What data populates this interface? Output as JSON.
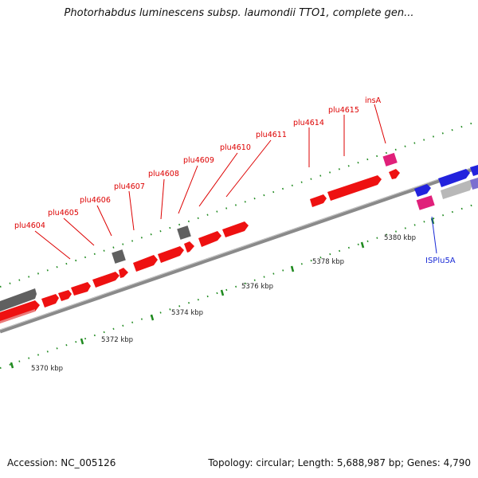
{
  "title": "Photorhabdus luminescens subsp. laumondii TTO1, complete gen...",
  "footer": {
    "accession": "Accession: NC_005126",
    "summary": "Topology: circular; Length: 5,688,987 bp; Genes: 4,790"
  },
  "colors": {
    "cds": "#ee1111",
    "pseudo": "#707070",
    "rna": "#e0207a",
    "mobile": "#2222dd",
    "grey_feature": "#b8b8b8",
    "purple_feature": "#7b6fd0",
    "backbone": "#888888",
    "tick": "#1f8a1f",
    "label_red": "#dd0000",
    "label_blue": "#1a2bd6"
  },
  "scale_labels": [
    "5370 kbp",
    "5372 kbp",
    "5374 kbp",
    "5376 kbp",
    "5378 kbp",
    "5380 kbp"
  ],
  "gene_labels": [
    {
      "name": "plu4604",
      "color": "red"
    },
    {
      "name": "plu4605",
      "color": "red"
    },
    {
      "name": "plu4606",
      "color": "red"
    },
    {
      "name": "plu4607",
      "color": "red"
    },
    {
      "name": "plu4608",
      "color": "red"
    },
    {
      "name": "plu4609",
      "color": "red"
    },
    {
      "name": "plu4610",
      "color": "red"
    },
    {
      "name": "plu4611",
      "color": "red"
    },
    {
      "name": "plu4614",
      "color": "red"
    },
    {
      "name": "plu4615",
      "color": "red"
    },
    {
      "name": "insA",
      "color": "red"
    },
    {
      "name": "ISPlu5A",
      "color": "blue"
    }
  ]
}
